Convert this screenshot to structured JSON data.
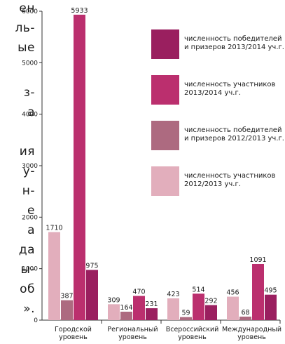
{
  "page_text_lines": [
    "ен",
    "ль-",
    "ые",
    "",
    "з-",
    "а",
    "",
    "ия",
    "у-",
    "н-",
    "е",
    "а",
    "да",
    "ы-",
    "об",
    "»."
  ],
  "chart_data": {
    "type": "bar",
    "title": "",
    "xlabel": "",
    "ylabel": "",
    "ylim": [
      0,
      6000
    ],
    "yticks": [
      0,
      1000,
      2000,
      3000,
      4000,
      5000,
      6000
    ],
    "grid": false,
    "legend_position": "right",
    "categories": [
      [
        "Городской",
        "уровень"
      ],
      [
        "Региональный",
        "уровень"
      ],
      [
        "Всероссийский",
        "уровень"
      ],
      [
        "Международный",
        "уровень"
      ]
    ],
    "series": [
      {
        "name": [
          "численность участников",
          "2012/2013 уч.г."
        ],
        "color": "#e2aebc",
        "values": [
          1710,
          309,
          423,
          456
        ]
      },
      {
        "name": [
          "численность победителей",
          "и призеров 2012/2013 уч.г."
        ],
        "color": "#ad6a80",
        "values": [
          387,
          164,
          59,
          68
        ]
      },
      {
        "name": [
          "численность участников",
          "2013/2014 уч.г."
        ],
        "color": "#bb2f6e",
        "values": [
          5933,
          470,
          514,
          1091
        ]
      },
      {
        "name": [
          "численность победителей",
          "и призеров 2013/2014 уч.г."
        ],
        "color": "#9a1f5f",
        "values": [
          975,
          231,
          292,
          495
        ]
      }
    ]
  }
}
